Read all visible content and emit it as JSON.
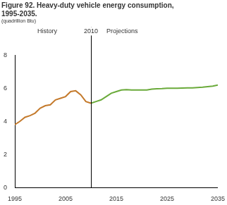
{
  "chart_data": {
    "type": "line",
    "title": "Figure 92. Heavy-duty vehicle energy consumption, 1995-2035.",
    "subtitle": "(quadrillion Btu)",
    "annotations": [
      "History",
      "Projections"
    ],
    "vline": {
      "x": 2010,
      "label": "2010"
    },
    "x": [
      1995,
      1996,
      1997,
      1998,
      1999,
      2000,
      2001,
      2002,
      2003,
      2004,
      2005,
      2006,
      2007,
      2008,
      2009,
      2010,
      2011,
      2012,
      2013,
      2014,
      2015,
      2016,
      2017,
      2018,
      2019,
      2020,
      2021,
      2022,
      2023,
      2024,
      2025,
      2026,
      2027,
      2028,
      2029,
      2030,
      2031,
      2032,
      2033,
      2034,
      2035
    ],
    "series": [
      {
        "color": "#c47a2c",
        "values": [
          3.8,
          4.0,
          4.25,
          4.35,
          4.5,
          4.8,
          4.95,
          5.0,
          5.3,
          5.4,
          5.5,
          5.8,
          5.85,
          5.6,
          5.2,
          5.1,
          null,
          null,
          null,
          null,
          null,
          null,
          null,
          null,
          null,
          null,
          null,
          null,
          null,
          null,
          null,
          null,
          null,
          null,
          null,
          null,
          null,
          null,
          null,
          null,
          null
        ]
      },
      {
        "color": "#6aaa3a",
        "values": [
          null,
          null,
          null,
          null,
          null,
          null,
          null,
          null,
          null,
          null,
          null,
          null,
          null,
          null,
          null,
          5.1,
          5.2,
          5.3,
          5.5,
          5.7,
          5.8,
          5.9,
          5.92,
          5.9,
          5.9,
          5.9,
          5.9,
          5.95,
          5.97,
          5.98,
          6.0,
          6.0,
          6.0,
          6.02,
          6.03,
          6.03,
          6.05,
          6.07,
          6.1,
          6.13,
          6.2
        ]
      }
    ],
    "xlim": [
      1995,
      2035
    ],
    "xticks": [
      1995,
      2005,
      2015,
      2025,
      2035
    ],
    "ylim": [
      0,
      8
    ],
    "yticks": [
      0,
      2,
      4,
      6,
      8
    ],
    "grid": false
  }
}
